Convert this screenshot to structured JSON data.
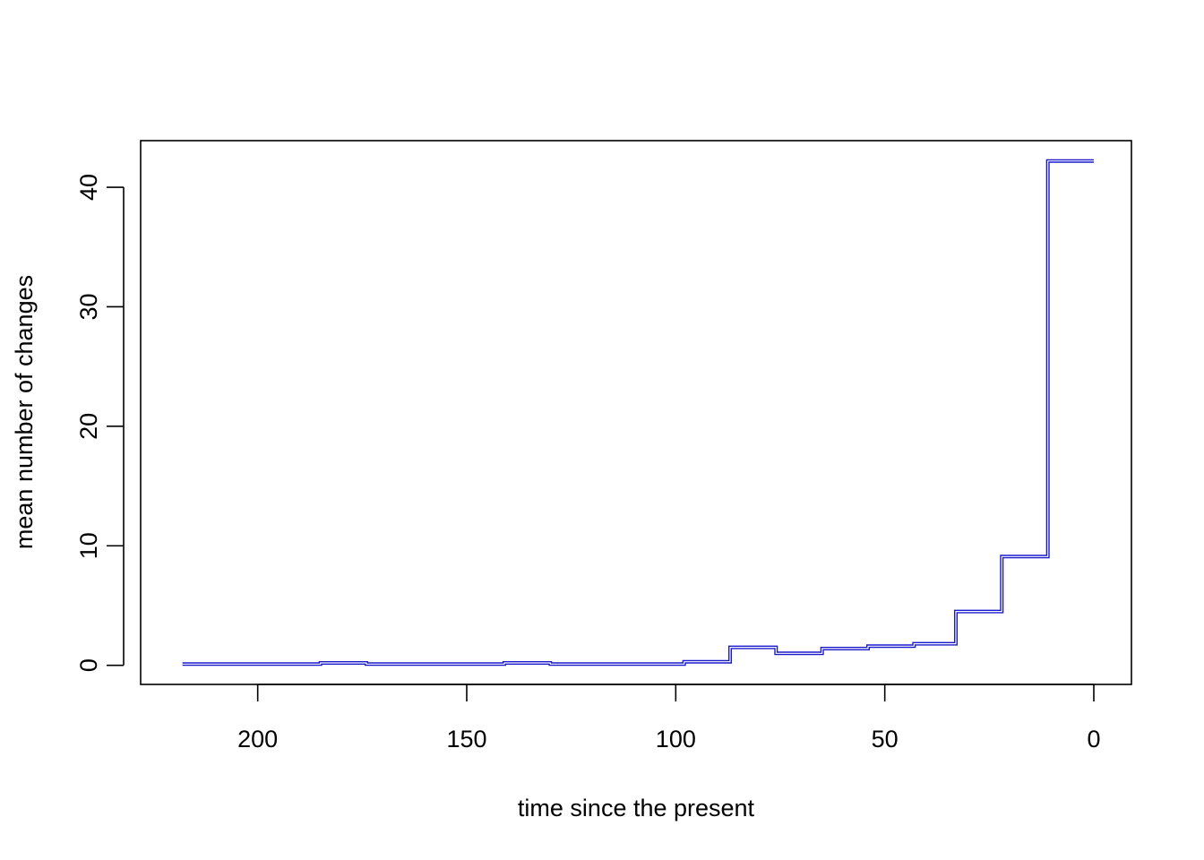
{
  "chart_data": {
    "type": "line",
    "title": "",
    "xlabel": "time since the present",
    "ylabel": "mean number of changes",
    "x_reversed": true,
    "xlim": [
      228,
      -9
    ],
    "ylim": [
      -1.6,
      43.9
    ],
    "xticks": [
      200,
      150,
      100,
      50,
      0
    ],
    "yticks": [
      0,
      10,
      20,
      30,
      40
    ],
    "grid": false,
    "legend": "none",
    "colors": {
      "series": "#1a1acc",
      "highlight": "#ffffff",
      "axes": "#000000"
    },
    "series": [
      {
        "step": true,
        "x": [
          218,
          207,
          196,
          185,
          174,
          163,
          152,
          141,
          130,
          119,
          108,
          98,
          87,
          76,
          65,
          54,
          43,
          33,
          22,
          11,
          0
        ],
        "y": [
          0.1,
          0.1,
          0.1,
          0.2,
          0.1,
          0.1,
          0.1,
          0.2,
          0.1,
          0.1,
          0.1,
          0.3,
          1.5,
          1.0,
          1.4,
          1.6,
          1.8,
          4.5,
          9.1,
          42.2,
          42.2
        ]
      }
    ]
  }
}
